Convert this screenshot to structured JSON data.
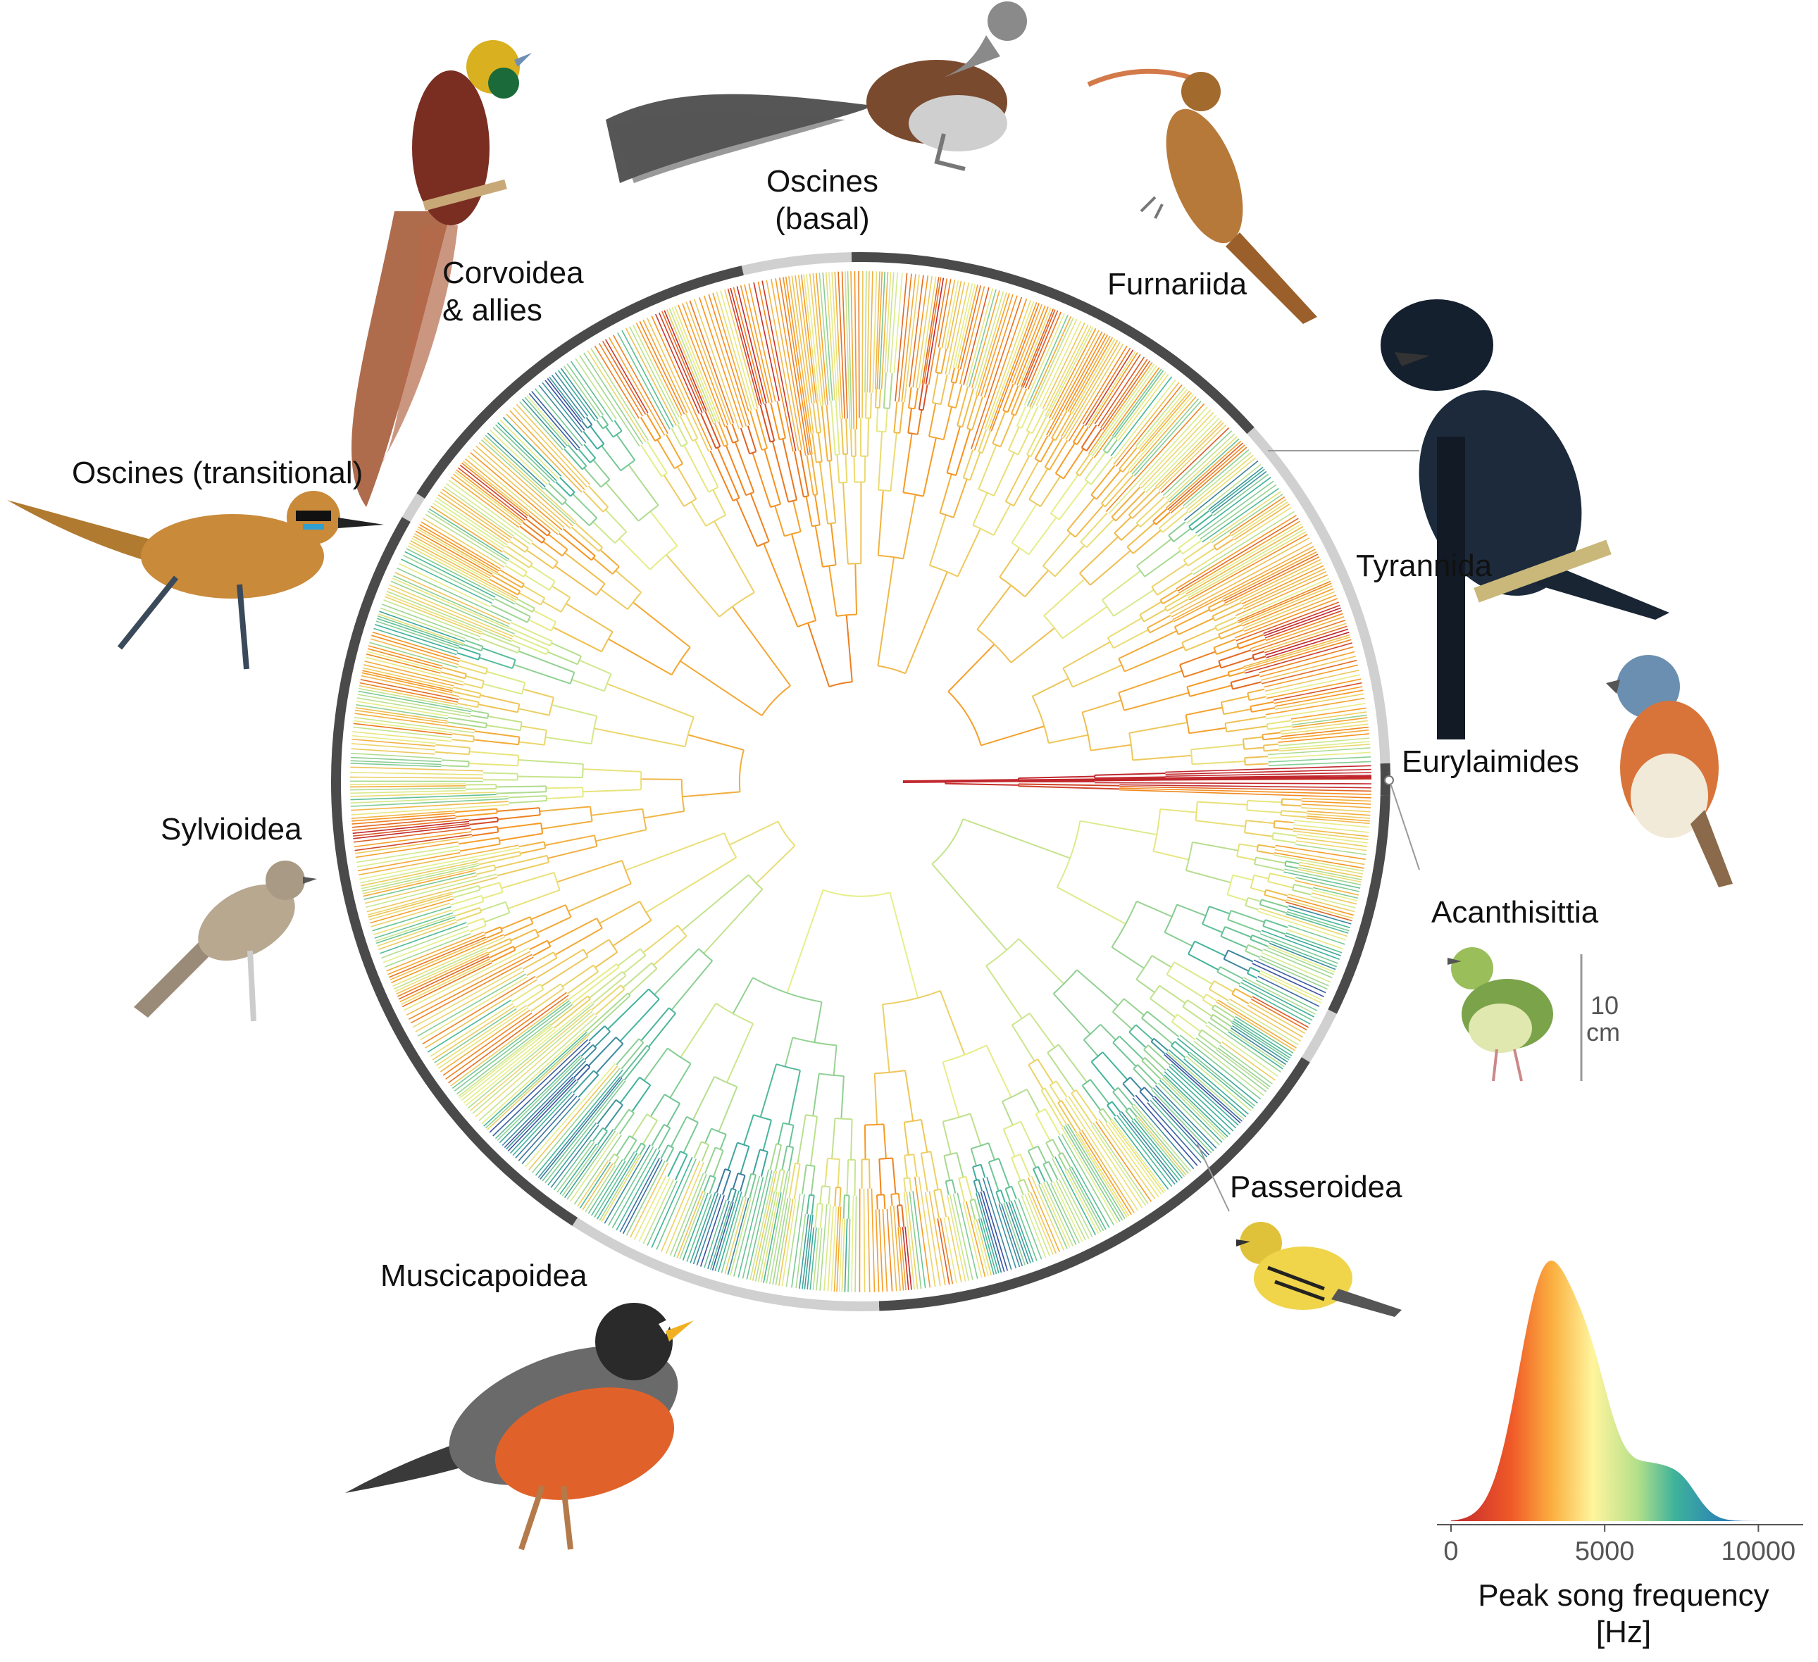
{
  "clades": [
    {
      "id": "oscines-basal",
      "lines": [
        "Oscines",
        "(basal)"
      ]
    },
    {
      "id": "corvoidea",
      "lines": [
        "Corvoidea",
        "& allies"
      ]
    },
    {
      "id": "furnariida",
      "lines": [
        "Furnariida"
      ]
    },
    {
      "id": "oscines-transitional",
      "lines": [
        "Oscines (transitional)"
      ]
    },
    {
      "id": "tyrannida",
      "lines": [
        "Tyrannida"
      ]
    },
    {
      "id": "eurylaimides",
      "lines": [
        "Eurylaimides"
      ]
    },
    {
      "id": "sylvioidea",
      "lines": [
        "Sylvioidea"
      ]
    },
    {
      "id": "acanthisittia",
      "lines": [
        "Acanthisittia"
      ]
    },
    {
      "id": "passeroidea",
      "lines": [
        "Passeroidea"
      ]
    },
    {
      "id": "muscicapoidea",
      "lines": [
        "Muscicapoidea"
      ]
    }
  ],
  "scale_bar": {
    "value": "10",
    "unit": "cm"
  },
  "density": {
    "x_ticks": [
      "0",
      "5000",
      "10000"
    ],
    "x_min": 0,
    "x_max": 11000,
    "title_line1": "Peak song frequency",
    "title_line2": "[Hz]"
  },
  "colors": {
    "low": "#c1272d",
    "mid_low": "#f7941d",
    "mid": "#e6ef8a",
    "mid_high": "#3fb39a",
    "high": "#3a4fa3",
    "ring_dark": "#4a4a4a",
    "ring_light": "#d0d0d0"
  },
  "birds": [
    {
      "id": "bird-of-paradise",
      "color": "#8b3a2a"
    },
    {
      "id": "lyrebird",
      "color": "#6b4a34"
    },
    {
      "id": "scythebill",
      "color": "#b7793a"
    },
    {
      "id": "umbrellabird",
      "color": "#1c2a3c"
    },
    {
      "id": "broadbill",
      "color": "#d8743a"
    },
    {
      "id": "rockfowl",
      "color": "#c98a3a"
    },
    {
      "id": "grassbird",
      "color": "#9a8a78"
    },
    {
      "id": "rifleman",
      "color": "#7ba34a"
    },
    {
      "id": "warbler",
      "color": "#e0c23a"
    },
    {
      "id": "robin",
      "color": "#e0622a"
    }
  ]
}
